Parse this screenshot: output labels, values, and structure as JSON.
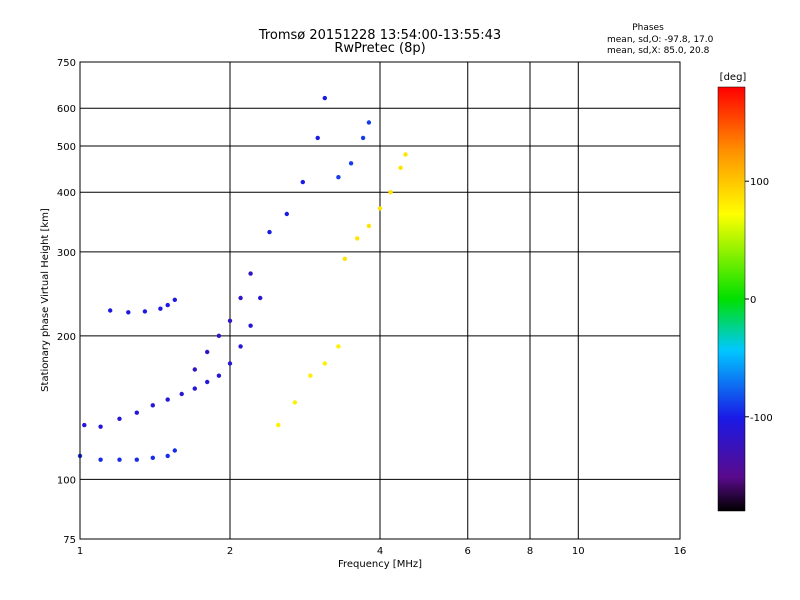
{
  "chart_data": {
    "type": "scatter",
    "title": "Tromsø 20151228 13:54:00-13:55:43",
    "subtitle": "RwPretec (8p)",
    "stats": {
      "heading": "Phases",
      "line1": "mean, sd,O: -97.8, 17.0",
      "line2": "mean, sd,X: 85.0, 20.8"
    },
    "xlabel": "Frequency [MHz]",
    "ylabel": "Stationary phase Virtual Height [km]",
    "x_scale": "log",
    "y_scale": "log",
    "xlim": [
      1,
      16
    ],
    "ylim": [
      75,
      750
    ],
    "x_ticks": [
      1,
      2,
      4,
      6,
      8,
      10,
      16
    ],
    "y_ticks": [
      75,
      100,
      200,
      300,
      400,
      500,
      600,
      750
    ],
    "grid": true,
    "colorbar": {
      "label": "[deg]",
      "range": [
        -180,
        180
      ],
      "ticks": [
        100,
        0,
        -100
      ],
      "colormap": "rainbow"
    },
    "series": [
      {
        "trace": [
          [
            1.02,
            130
          ],
          [
            1.1,
            129
          ],
          [
            1.2,
            134
          ],
          [
            1.3,
            138
          ],
          [
            1.4,
            143
          ],
          [
            1.5,
            147
          ],
          [
            1.6,
            151
          ],
          [
            1.7,
            155
          ],
          [
            1.8,
            160
          ],
          [
            1.9,
            165
          ],
          [
            2.0,
            175
          ],
          [
            2.1,
            190
          ],
          [
            2.2,
            210
          ],
          [
            2.3,
            240
          ]
        ],
        "phase": -110
      },
      {
        "trace": [
          [
            1.0,
            112
          ],
          [
            1.1,
            110
          ],
          [
            1.2,
            110
          ],
          [
            1.3,
            110
          ],
          [
            1.4,
            111
          ],
          [
            1.5,
            112
          ],
          [
            1.55,
            115
          ]
        ],
        "phase": -95
      },
      {
        "trace": [
          [
            1.15,
            226
          ],
          [
            1.25,
            224
          ],
          [
            1.35,
            225
          ],
          [
            1.45,
            228
          ],
          [
            1.5,
            232
          ],
          [
            1.55,
            238
          ]
        ],
        "phase": -105
      },
      {
        "trace": [
          [
            1.7,
            170
          ],
          [
            1.8,
            185
          ],
          [
            1.9,
            200
          ],
          [
            2.0,
            215
          ],
          [
            2.1,
            240
          ],
          [
            2.2,
            270
          ]
        ],
        "phase": -120
      },
      {
        "trace": [
          [
            2.4,
            330
          ],
          [
            2.6,
            360
          ],
          [
            2.8,
            420
          ],
          [
            3.0,
            520
          ],
          [
            3.1,
            630
          ]
        ],
        "phase": -100
      },
      {
        "trace": [
          [
            3.3,
            430
          ],
          [
            3.5,
            460
          ],
          [
            3.7,
            520
          ],
          [
            3.8,
            560
          ]
        ],
        "phase": -90
      },
      {
        "trace": [
          [
            3.4,
            290
          ],
          [
            3.6,
            320
          ],
          [
            3.8,
            340
          ],
          [
            4.0,
            370
          ],
          [
            4.2,
            400
          ],
          [
            4.4,
            450
          ],
          [
            4.5,
            480
          ]
        ],
        "phase": 85
      },
      {
        "trace": [
          [
            2.5,
            130
          ],
          [
            2.7,
            145
          ],
          [
            2.9,
            165
          ],
          [
            3.1,
            175
          ],
          [
            3.3,
            190
          ]
        ],
        "phase": 80
      }
    ]
  }
}
